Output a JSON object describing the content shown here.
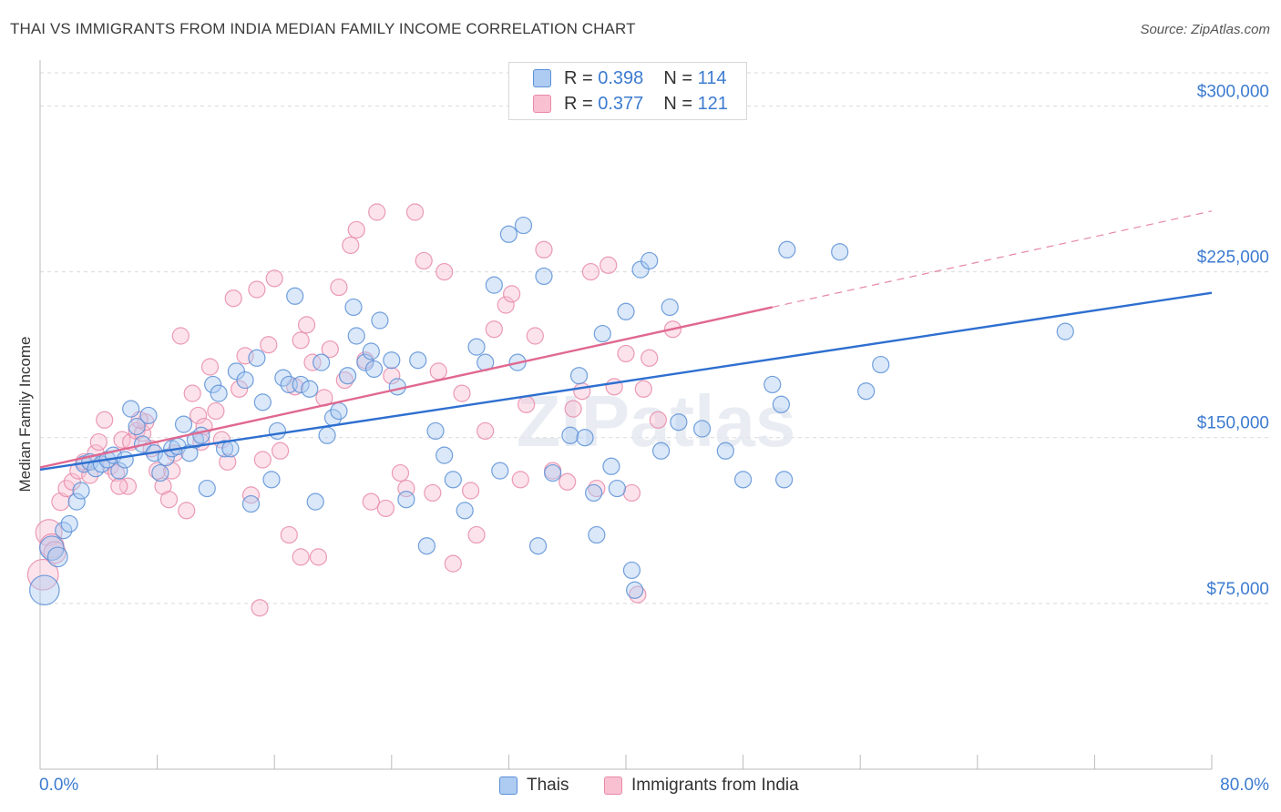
{
  "title": "THAI VS IMMIGRANTS FROM INDIA MEDIAN FAMILY INCOME CORRELATION CHART",
  "source": "Source: ZipAtlas.com",
  "watermark": "ZIPatlas",
  "legend_top": [
    {
      "r_label": "R = ",
      "r_value": "0.398",
      "n_label": "N = ",
      "n_value": "114"
    },
    {
      "r_label": "R = ",
      "r_value": "0.377",
      "n_label": "N = ",
      "n_value": "121"
    }
  ],
  "colors": {
    "thai_fill": "#aecbf2",
    "thai_stroke": "#5b8fd6",
    "thai_line": "#2e6fd0",
    "india_fill": "#f9c0d2",
    "india_stroke": "#e889a8",
    "india_line": "#e06890",
    "axis_text": "#3c7bd0",
    "grid": "#d9d9d9"
  },
  "chart_data": {
    "type": "scatter",
    "title": "THAI VS IMMIGRANTS FROM INDIA MEDIAN FAMILY INCOME CORRELATION CHART",
    "xlabel": "",
    "ylabel": "Median Family Income",
    "xlim": [
      0,
      80
    ],
    "ylim": [
      0,
      315000
    ],
    "x_tick_labels": [
      "0.0%",
      "80.0%"
    ],
    "y_ticks": [
      75000,
      150000,
      225000,
      300000
    ],
    "y_tick_labels": [
      "$75,000",
      "$150,000",
      "$225,000",
      "$300,000"
    ],
    "grid": true,
    "legend_position": "top-center",
    "series": [
      {
        "name": "Thais",
        "r": 0.398,
        "n": 114,
        "trend": {
          "x": [
            0,
            80
          ],
          "y": [
            135500,
            215500
          ],
          "extrapolated_to": null
        },
        "points": [
          [
            0.3,
            81000
          ],
          [
            0.8,
            100000
          ],
          [
            1.2,
            96000
          ],
          [
            1.6,
            108000
          ],
          [
            2.0,
            111000
          ],
          [
            2.5,
            121000
          ],
          [
            2.8,
            126000
          ],
          [
            3.0,
            138000
          ],
          [
            3.4,
            139000
          ],
          [
            3.8,
            136000
          ],
          [
            4.2,
            138000
          ],
          [
            4.6,
            140000
          ],
          [
            5.0,
            142000
          ],
          [
            5.4,
            135000
          ],
          [
            5.8,
            140000
          ],
          [
            6.2,
            163000
          ],
          [
            6.6,
            155000
          ],
          [
            7.0,
            147000
          ],
          [
            7.4,
            160000
          ],
          [
            7.8,
            143000
          ],
          [
            8.2,
            134000
          ],
          [
            8.6,
            141000
          ],
          [
            9.0,
            145000
          ],
          [
            9.4,
            146000
          ],
          [
            9.8,
            156000
          ],
          [
            10.2,
            143000
          ],
          [
            10.6,
            149000
          ],
          [
            11.0,
            151000
          ],
          [
            11.4,
            127000
          ],
          [
            11.8,
            174000
          ],
          [
            12.2,
            170000
          ],
          [
            12.6,
            145000
          ],
          [
            13.0,
            145000
          ],
          [
            13.4,
            180000
          ],
          [
            14.0,
            176000
          ],
          [
            14.4,
            120000
          ],
          [
            14.8,
            186000
          ],
          [
            15.2,
            166000
          ],
          [
            15.8,
            131000
          ],
          [
            16.2,
            153000
          ],
          [
            16.6,
            177000
          ],
          [
            17.0,
            174000
          ],
          [
            17.4,
            214000
          ],
          [
            17.8,
            174000
          ],
          [
            18.4,
            172000
          ],
          [
            18.8,
            121000
          ],
          [
            19.2,
            184000
          ],
          [
            19.6,
            151000
          ],
          [
            20.0,
            159000
          ],
          [
            20.4,
            162000
          ],
          [
            21.0,
            178000
          ],
          [
            21.4,
            209000
          ],
          [
            21.6,
            196000
          ],
          [
            22.2,
            184000
          ],
          [
            22.6,
            189000
          ],
          [
            22.8,
            181000
          ],
          [
            23.2,
            203000
          ],
          [
            24.0,
            185000
          ],
          [
            24.4,
            173000
          ],
          [
            25.0,
            122000
          ],
          [
            25.8,
            185000
          ],
          [
            26.4,
            101000
          ],
          [
            27.0,
            153000
          ],
          [
            27.6,
            142000
          ],
          [
            28.2,
            131000
          ],
          [
            29.0,
            117000
          ],
          [
            29.8,
            191000
          ],
          [
            30.4,
            184000
          ],
          [
            31.0,
            219000
          ],
          [
            31.4,
            135000
          ],
          [
            32.0,
            242000
          ],
          [
            32.6,
            184000
          ],
          [
            33.0,
            246000
          ],
          [
            34.0,
            101000
          ],
          [
            34.4,
            223000
          ],
          [
            35.0,
            134000
          ],
          [
            36.2,
            151000
          ],
          [
            36.8,
            178000
          ],
          [
            37.2,
            150000
          ],
          [
            37.8,
            125000
          ],
          [
            38.0,
            106000
          ],
          [
            38.4,
            197000
          ],
          [
            39.0,
            137000
          ],
          [
            39.4,
            127000
          ],
          [
            40.0,
            207000
          ],
          [
            40.4,
            90000
          ],
          [
            40.6,
            81000
          ],
          [
            41.0,
            226000
          ],
          [
            41.6,
            230000
          ],
          [
            42.4,
            144000
          ],
          [
            43.0,
            209000
          ],
          [
            43.6,
            157000
          ],
          [
            45.2,
            154000
          ],
          [
            46.8,
            144000
          ],
          [
            48.0,
            131000
          ],
          [
            50.0,
            174000
          ],
          [
            50.6,
            165000
          ],
          [
            50.8,
            131000
          ],
          [
            51.0,
            235000
          ],
          [
            54.6,
            234000
          ],
          [
            56.4,
            171000
          ],
          [
            57.4,
            183000
          ],
          [
            70.0,
            198000
          ]
        ]
      },
      {
        "name": "Immigrants from India",
        "r": 0.377,
        "n": 121,
        "trend": {
          "x": [
            0,
            50
          ],
          "y": [
            136500,
            209000
          ],
          "extrapolated_to": 80
        },
        "points": [
          [
            0.2,
            88000
          ],
          [
            0.6,
            107000
          ],
          [
            0.8,
            101000
          ],
          [
            1.0,
            98000
          ],
          [
            1.4,
            121000
          ],
          [
            1.8,
            127000
          ],
          [
            2.2,
            130000
          ],
          [
            2.6,
            135000
          ],
          [
            3.0,
            139000
          ],
          [
            3.4,
            133000
          ],
          [
            3.8,
            143000
          ],
          [
            4.0,
            148000
          ],
          [
            4.4,
            158000
          ],
          [
            4.8,
            137000
          ],
          [
            5.2,
            134000
          ],
          [
            5.6,
            149000
          ],
          [
            6.0,
            128000
          ],
          [
            6.2,
            148000
          ],
          [
            6.6,
            153000
          ],
          [
            7.0,
            152000
          ],
          [
            7.2,
            157000
          ],
          [
            7.6,
            145000
          ],
          [
            8.0,
            135000
          ],
          [
            8.4,
            128000
          ],
          [
            8.8,
            122000
          ],
          [
            9.2,
            143000
          ],
          [
            9.6,
            196000
          ],
          [
            10.0,
            117000
          ],
          [
            10.4,
            170000
          ],
          [
            10.8,
            160000
          ],
          [
            11.2,
            155000
          ],
          [
            11.6,
            182000
          ],
          [
            12.0,
            162000
          ],
          [
            12.4,
            149000
          ],
          [
            12.8,
            139000
          ],
          [
            13.2,
            213000
          ],
          [
            13.6,
            172000
          ],
          [
            14.0,
            187000
          ],
          [
            14.4,
            124000
          ],
          [
            14.8,
            217000
          ],
          [
            15.2,
            140000
          ],
          [
            15.6,
            192000
          ],
          [
            16.0,
            222000
          ],
          [
            16.4,
            144000
          ],
          [
            17.0,
            106000
          ],
          [
            17.4,
            173000
          ],
          [
            17.8,
            194000
          ],
          [
            18.2,
            201000
          ],
          [
            18.6,
            184000
          ],
          [
            19.0,
            96000
          ],
          [
            19.4,
            168000
          ],
          [
            19.8,
            190000
          ],
          [
            20.4,
            218000
          ],
          [
            20.8,
            176000
          ],
          [
            21.2,
            237000
          ],
          [
            21.6,
            244000
          ],
          [
            22.2,
            185000
          ],
          [
            22.6,
            121000
          ],
          [
            23.0,
            252000
          ],
          [
            23.6,
            118000
          ],
          [
            24.0,
            178000
          ],
          [
            24.6,
            134000
          ],
          [
            25.0,
            127000
          ],
          [
            25.6,
            252000
          ],
          [
            26.2,
            230000
          ],
          [
            26.8,
            125000
          ],
          [
            27.2,
            180000
          ],
          [
            27.6,
            225000
          ],
          [
            28.2,
            93000
          ],
          [
            28.8,
            170000
          ],
          [
            29.4,
            126000
          ],
          [
            29.8,
            106000
          ],
          [
            30.4,
            153000
          ],
          [
            31.0,
            199000
          ],
          [
            31.8,
            210000
          ],
          [
            32.2,
            215000
          ],
          [
            32.8,
            131000
          ],
          [
            33.2,
            165000
          ],
          [
            33.8,
            196000
          ],
          [
            34.4,
            235000
          ],
          [
            35.0,
            135000
          ],
          [
            36.0,
            130000
          ],
          [
            36.4,
            163000
          ],
          [
            37.0,
            171000
          ],
          [
            37.6,
            225000
          ],
          [
            38.0,
            127000
          ],
          [
            38.8,
            228000
          ],
          [
            39.2,
            173000
          ],
          [
            40.0,
            188000
          ],
          [
            40.4,
            125000
          ],
          [
            40.8,
            79000
          ],
          [
            41.2,
            172000
          ],
          [
            41.6,
            186000
          ],
          [
            42.2,
            158000
          ],
          [
            43.2,
            199000
          ],
          [
            17.8,
            96000
          ],
          [
            15.0,
            73000
          ],
          [
            5.4,
            128000
          ],
          [
            6.8,
            158000
          ],
          [
            9.0,
            135000
          ],
          [
            11.0,
            148000
          ]
        ]
      }
    ]
  }
}
